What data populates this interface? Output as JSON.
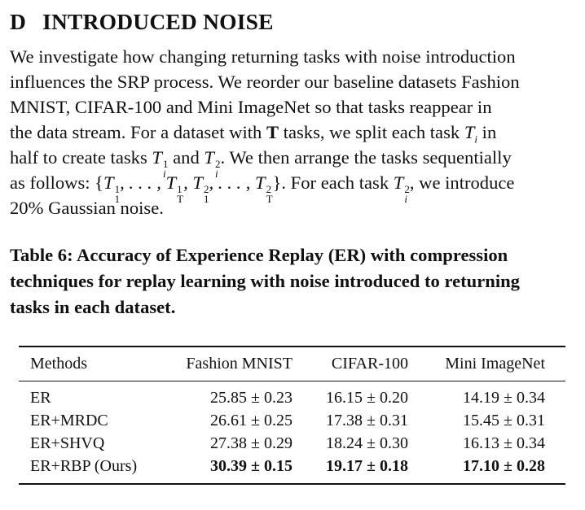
{
  "section": {
    "letter": "D",
    "title": "INTRODUCED NOISE"
  },
  "paragraph": {
    "line1": "We investigate how changing returning tasks with noise introduction",
    "line2": "influences the SRP process. We reorder our baseline datasets Fashion",
    "line3": "MNIST, CIFAR-100 and Mini ImageNet so that tasks reappear in",
    "line4_a": "the data stream. For a dataset with ",
    "line4_b": "T",
    "line4_c": " tasks, we split each task ",
    "line4_d": " in",
    "line5_a": "half to create tasks ",
    "line5_b": " and ",
    "line5_c": ". We then arrange the tasks sequentially",
    "line6_a": "as follows: {",
    "line6_b": "}. For each task ",
    "line6_c": ", we introduce",
    "line7": "20% Gaussian noise."
  },
  "caption": {
    "line1": "Table 6: Accuracy of Experience Replay (ER) with compression",
    "line2": "techniques for replay learning with noise introduced to returning",
    "line3": "tasks in each dataset."
  },
  "table": {
    "headers": [
      "Methods",
      "Fashion MNIST",
      "CIFAR-100",
      "Mini ImageNet"
    ],
    "rows": [
      [
        "ER",
        "25.85 ± 0.23",
        "16.15 ± 0.20",
        "14.19 ± 0.34"
      ],
      [
        "ER+MRDC",
        "26.61 ± 0.25",
        "17.38 ± 0.31",
        "15.45 ± 0.31"
      ],
      [
        "ER+SHVQ",
        "27.38 ± 0.29",
        "18.24 ± 0.30",
        "16.13 ± 0.34"
      ],
      [
        "ER+RBP (Ours)",
        "30.39 ± 0.15",
        "19.17 ± 0.18",
        "17.10 ± 0.28"
      ]
    ]
  }
}
